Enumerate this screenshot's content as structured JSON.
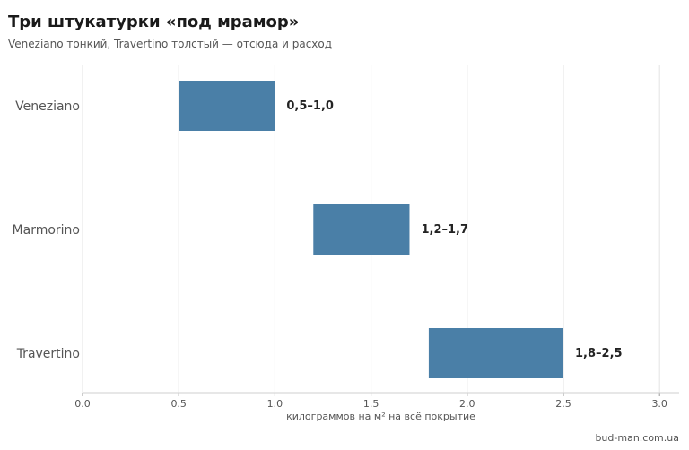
{
  "chart_data": {
    "type": "bar",
    "orientation": "horizontal-range",
    "title": "Три штукатурки «под мрамор»",
    "subtitle": "Veneziano тонкий, Travertino толстый — отсюда и расход",
    "xlabel": "килограммов на м² на всё покрытие",
    "ylabel": "",
    "xlim": [
      0,
      3.1
    ],
    "xticks": [
      0.0,
      0.5,
      1.0,
      1.5,
      2.0,
      2.5,
      3.0
    ],
    "xtick_labels": [
      "0.0",
      "0.5",
      "1.0",
      "1.5",
      "2.0",
      "2.5",
      "3.0"
    ],
    "grid": "vertical",
    "color": "#4a7fa7",
    "categories": [
      "Veneziano",
      "Marmorino",
      "Travertino"
    ],
    "ranges": [
      [
        0.5,
        1.0
      ],
      [
        1.2,
        1.7
      ],
      [
        1.8,
        2.5
      ]
    ],
    "data_labels": [
      "0,5–1,0",
      "1,2–1,7",
      "1,8–2,5"
    ]
  },
  "footer": {
    "source": "bud-man.com.ua"
  }
}
